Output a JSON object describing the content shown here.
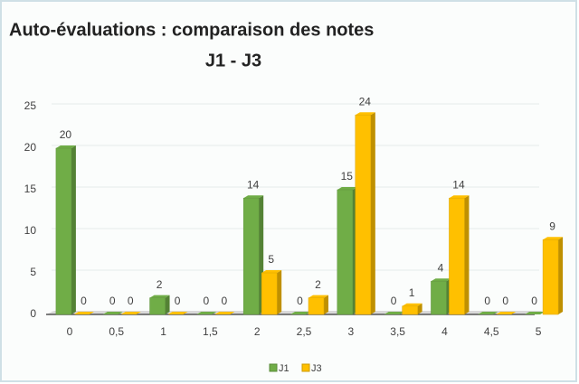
{
  "chart_data": {
    "type": "bar3d",
    "title": "Auto-évaluations : comparaison des notes",
    "subtitle": "J1 - J3",
    "categories": [
      "0",
      "0,5",
      "1",
      "1,5",
      "2",
      "2,5",
      "3",
      "3,5",
      "4",
      "4,5",
      "5"
    ],
    "series": [
      {
        "name": "J1",
        "color": "#70ad47",
        "values": [
          20,
          0,
          2,
          0,
          14,
          0,
          15,
          0,
          4,
          0,
          0
        ]
      },
      {
        "name": "J3",
        "color": "#ffc000",
        "values": [
          0,
          0,
          0,
          0,
          5,
          2,
          24,
          1,
          14,
          0,
          9
        ]
      }
    ],
    "ylim": [
      0,
      25
    ],
    "yticks": [
      0,
      5,
      10,
      15,
      20,
      25
    ],
    "grid": true,
    "legend": "bottom"
  }
}
